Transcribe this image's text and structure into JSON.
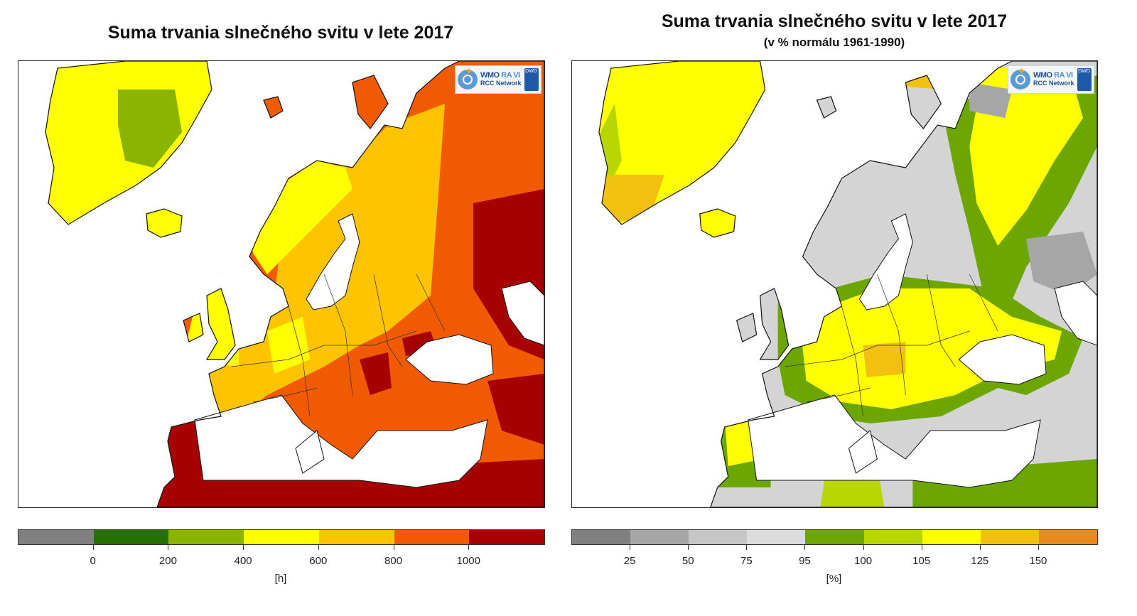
{
  "left": {
    "title": "Suma trvania slnečného svitu v lete 2017",
    "legend": {
      "colors": [
        "#808080",
        "#277000",
        "#8ab400",
        "#ffff00",
        "#ffc400",
        "#f25a00",
        "#a60000"
      ],
      "ticks": [
        "0",
        "200",
        "400",
        "600",
        "800",
        "1000"
      ],
      "unit": "[h]"
    }
  },
  "right": {
    "title": "Suma trvania slnečného svitu v lete 2017",
    "subtitle": "(v % normálu 1961-1990)",
    "legend": {
      "colors": [
        "#808080",
        "#a6a6a6",
        "#c6c6c6",
        "#dcdcdc",
        "#6ea600",
        "#b8d600",
        "#ffff00",
        "#f2c10f",
        "#e88a1c"
      ],
      "ticks": [
        "25",
        "50",
        "75",
        "95",
        "100",
        "105",
        "125",
        "150"
      ],
      "unit": "[%]"
    }
  },
  "logo": {
    "line1a": "WMO ",
    "line1b": "RA VI",
    "line2": "RCC Network",
    "badge": "DWD"
  }
}
